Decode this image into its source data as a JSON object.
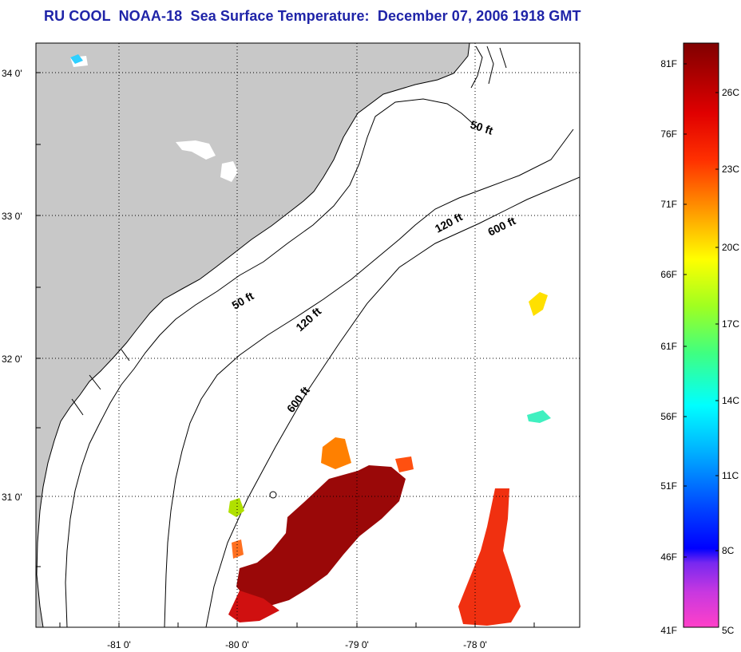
{
  "title": "RU COOL  NOAA-18  Sea Surface Temperature:  December 07, 2006 1918 GMT",
  "map": {
    "lat_labels": [
      "34 0'",
      "33 0'",
      "32 0'",
      "31 0'"
    ],
    "lon_labels": [
      "-81 0'",
      "-80 0'",
      "-79 0'",
      "-78 0'"
    ],
    "grid": true,
    "contours": {
      "fifty_a": "50 ft",
      "fifty_b": "50 ft",
      "onetwenty_a": "120 ft",
      "onetwenty_b": "120 ft",
      "sixhundred_a": "600 ft",
      "sixhundred_b": "600 ft"
    },
    "colors": {
      "land": "#c8c8c8",
      "ocean": "#ffffff",
      "coastline": "#000000"
    }
  },
  "colorbar": {
    "f_labels": [
      "81F",
      "76F",
      "71F",
      "66F",
      "61F",
      "56F",
      "51F",
      "46F",
      "41F"
    ],
    "c_labels": [
      "26C",
      "23C",
      "20C",
      "17C",
      "14C",
      "11C",
      "8C",
      "5C"
    ],
    "colors": [
      "#ff40c8",
      "#b030e8",
      "#0000ff",
      "#00a0ff",
      "#00ffff",
      "#40ff80",
      "#c0ff00",
      "#ffff00",
      "#ff9000",
      "#ff3000",
      "#dd0000",
      "#800000"
    ]
  }
}
